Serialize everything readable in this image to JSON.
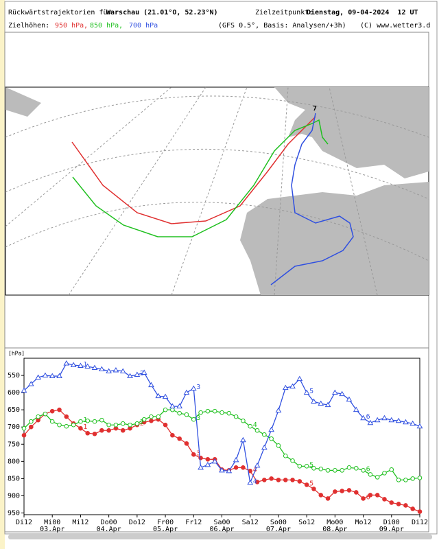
{
  "header": {
    "title_prefix": "Rückwärtstrajektorien für",
    "location": "Warschau (21.01°O, 52.23°N)",
    "target_label": "Zielzeitpunkt:",
    "target_time": "Dienstag, 09-04-2024  12 UT",
    "levels_label": "Zielhöhen:",
    "level_950": "950 hPa,",
    "level_850": "850 hPa,",
    "level_700": "700 hPa",
    "model": "(GFS 0.5°, Basis: Analysen/+3h)",
    "copyright": "(C) www.wetter3.d"
  },
  "map": {
    "target_marker": "7"
  },
  "chart_data": {
    "type": "line",
    "ylabel": "[hPa]",
    "x": [
      0,
      3,
      6,
      9,
      12,
      15,
      18,
      21,
      24,
      27,
      30,
      33,
      36,
      39,
      42,
      45,
      48,
      51,
      54,
      57,
      60,
      63,
      66,
      69,
      72,
      75,
      78,
      81,
      84,
      87,
      90,
      93,
      96,
      99,
      102,
      105,
      108,
      111,
      114,
      117,
      120,
      123,
      126,
      129,
      132,
      135,
      138,
      141,
      144,
      147,
      150,
      153,
      156,
      159,
      162,
      165,
      168
    ],
    "xlim": [
      0,
      168
    ],
    "xticks": [
      {
        "value": 0,
        "label": "Di12"
      },
      {
        "value": 12,
        "label": "Mi00"
      },
      {
        "value": 24,
        "label": "Mi12"
      },
      {
        "value": 36,
        "label": "Do00"
      },
      {
        "value": 48,
        "label": "Do12"
      },
      {
        "value": 60,
        "label": "Fr00"
      },
      {
        "value": 72,
        "label": "Fr12"
      },
      {
        "value": 84,
        "label": "Sa00"
      },
      {
        "value": 96,
        "label": "Sa12"
      },
      {
        "value": 108,
        "label": "So00"
      },
      {
        "value": 120,
        "label": "So12"
      },
      {
        "value": 132,
        "label": "Mo00"
      },
      {
        "value": 144,
        "label": "Mo12"
      },
      {
        "value": 156,
        "label": "Di00"
      },
      {
        "value": 168,
        "label": "Di12"
      }
    ],
    "xdate_ticks": [
      {
        "value": 12,
        "label": "03.Apr"
      },
      {
        "value": 36,
        "label": "04.Apr"
      },
      {
        "value": 60,
        "label": "05.Apr"
      },
      {
        "value": 84,
        "label": "06.Apr"
      },
      {
        "value": 108,
        "label": "07.Apr"
      },
      {
        "value": 132,
        "label": "08.Apr"
      },
      {
        "value": 156,
        "label": "09.Apr"
      }
    ],
    "ylim": [
      955,
      500
    ],
    "yticks": [
      550,
      600,
      650,
      700,
      750,
      800,
      850,
      900,
      950
    ],
    "day_labels": [
      "1",
      "2",
      "3",
      "4",
      "5",
      "6"
    ],
    "series": [
      {
        "name": "950 hPa",
        "color": "#e03030",
        "marker": "filled-circle",
        "values": [
          724,
          700,
          680,
          662,
          654,
          650,
          670,
          690,
          704,
          718,
          720,
          710,
          710,
          704,
          710,
          704,
          694,
          686,
          682,
          678,
          694,
          724,
          734,
          748,
          780,
          790,
          794,
          794,
          824,
          826,
          818,
          818,
          828,
          860,
          854,
          850,
          854,
          854,
          854,
          858,
          868,
          880,
          898,
          908,
          888,
          886,
          884,
          890,
          908,
          898,
          898,
          910,
          920,
          924,
          928,
          938,
          946
        ]
      },
      {
        "name": "850 hPa",
        "color": "#20c020",
        "marker": "open-circle",
        "values": [
          704,
          684,
          670,
          662,
          684,
          694,
          698,
          694,
          684,
          682,
          684,
          680,
          694,
          694,
          690,
          694,
          690,
          678,
          670,
          670,
          650,
          650,
          660,
          664,
          678,
          658,
          654,
          654,
          658,
          660,
          670,
          682,
          698,
          710,
          722,
          734,
          754,
          784,
          798,
          814,
          814,
          820,
          822,
          826,
          826,
          826,
          818,
          820,
          826,
          838,
          846,
          834,
          824,
          854,
          854,
          850,
          848
        ]
      },
      {
        "name": "700 hPa",
        "color": "#3050e0",
        "marker": "open-triangle",
        "values": [
          594,
          575,
          556,
          550,
          552,
          552,
          515,
          520,
          522,
          524,
          528,
          532,
          538,
          535,
          538,
          552,
          548,
          542,
          578,
          610,
          612,
          640,
          640,
          600,
          588,
          818,
          810,
          800,
          826,
          828,
          796,
          738,
          862,
          812,
          760,
          708,
          652,
          586,
          582,
          560,
          600,
          626,
          632,
          636,
          600,
          604,
          620,
          650,
          674,
          688,
          680,
          674,
          680,
          682,
          686,
          690,
          698
        ]
      }
    ]
  }
}
